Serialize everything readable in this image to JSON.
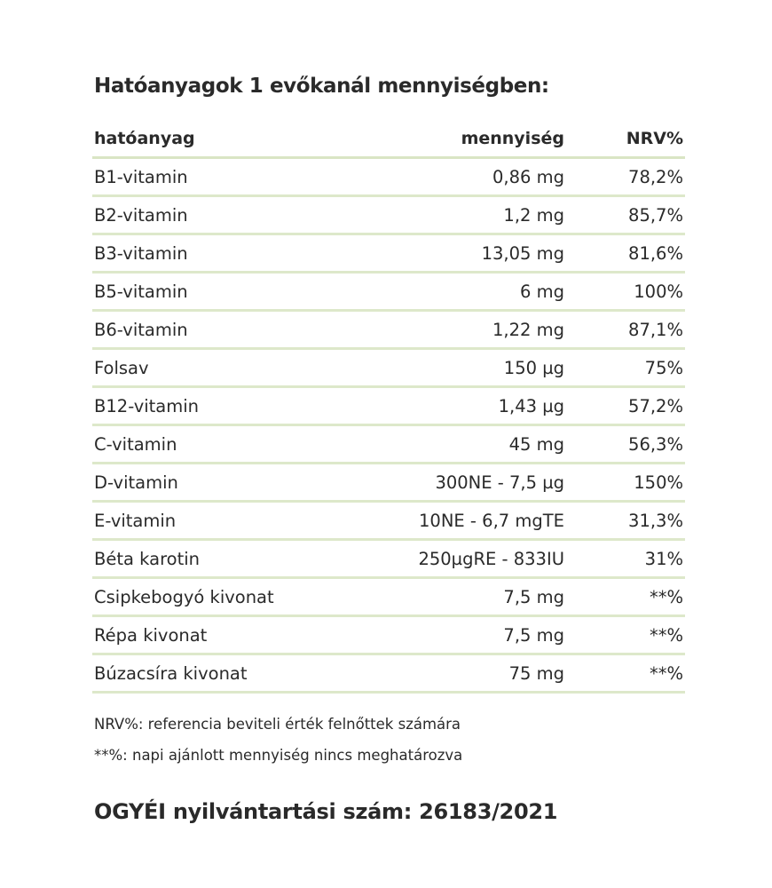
{
  "title": "Hatóanyagok 1 evőkanál mennyiségben:",
  "headers": {
    "ingredient": "hatóanyag",
    "amount": "mennyiség",
    "nrv": "NRV%"
  },
  "rows": [
    {
      "name": "B1-vitamin",
      "amount": "0,86 mg",
      "nrv": "78,2%"
    },
    {
      "name": "B2-vitamin",
      "amount": "1,2 mg",
      "nrv": "85,7%"
    },
    {
      "name": "B3-vitamin",
      "amount": "13,05 mg",
      "nrv": "81,6%"
    },
    {
      "name": "B5-vitamin",
      "amount": "6 mg",
      "nrv": "100%"
    },
    {
      "name": "B6-vitamin",
      "amount": "1,22 mg",
      "nrv": "87,1%"
    },
    {
      "name": "Folsav",
      "amount": "150 µg",
      "nrv": "75%"
    },
    {
      "name": "B12-vitamin",
      "amount": "1,43 µg",
      "nrv": "57,2%"
    },
    {
      "name": "C-vitamin",
      "amount": "45 mg",
      "nrv": "56,3%"
    },
    {
      "name": "D-vitamin",
      "amount": "300NE - 7,5 µg",
      "nrv": "150%"
    },
    {
      "name": "E-vitamin",
      "amount": "10NE - 6,7 mgTE",
      "nrv": "31,3%"
    },
    {
      "name": "Béta karotin",
      "amount": "250µgRE - 833IU",
      "nrv": "31%"
    },
    {
      "name": "Csipkebogyó kivonat",
      "amount": "7,5 mg",
      "nrv": "**%"
    },
    {
      "name": "Répa kivonat",
      "amount": "7,5 mg",
      "nrv": "**%"
    },
    {
      "name": "Búzacsíra kivonat",
      "amount": "75 mg",
      "nrv": "**%"
    }
  ],
  "notes": [
    "NRV%: referencia beviteli érték felnőttek számára",
    "**%: napi ajánlott mennyiség nincs meghatározva"
  ],
  "registration": "OGYÉI nyilvántartási szám: 26183/2021",
  "colors": {
    "rule": "#d9e5c4",
    "text": "#2a2a2a"
  }
}
